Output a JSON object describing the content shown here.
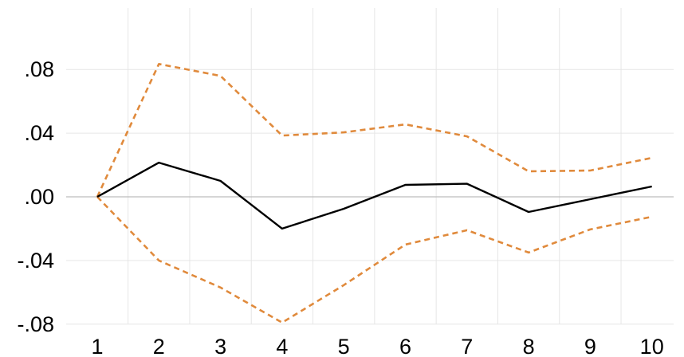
{
  "chart_data": {
    "type": "line",
    "title": "",
    "xlabel": "",
    "ylabel": "",
    "x": [
      1,
      2,
      3,
      4,
      5,
      6,
      7,
      8,
      9,
      10
    ],
    "x_tick_labels": [
      "1",
      "2",
      "3",
      "4",
      "5",
      "6",
      "7",
      "8",
      "9",
      "10"
    ],
    "y_ticks": [
      -0.08,
      -0.04,
      0.0,
      0.04,
      0.08
    ],
    "y_tick_labels": [
      "-.08",
      "-.04",
      ".00",
      ".04",
      ".08"
    ],
    "ylim": [
      -0.08,
      0.12
    ],
    "grid": "vertical",
    "legend": "none",
    "series": [
      {
        "role": "response",
        "color": "#000000",
        "style": "solid",
        "values": [
          0.0,
          0.0215,
          0.01,
          -0.02,
          -0.0075,
          0.0075,
          0.0082,
          -0.0095,
          -0.0015,
          0.0065
        ]
      },
      {
        "role": "upper-band",
        "color": "#e08a3c",
        "style": "dashed",
        "values": [
          0.0,
          0.0835,
          0.076,
          0.0385,
          0.0405,
          0.0455,
          0.038,
          0.016,
          0.0165,
          0.0245
        ]
      },
      {
        "role": "lower-band",
        "color": "#e08a3c",
        "style": "dashed",
        "values": [
          0.0,
          -0.04,
          -0.057,
          -0.079,
          -0.0555,
          -0.03,
          -0.021,
          -0.035,
          -0.0205,
          -0.0125
        ]
      }
    ]
  }
}
